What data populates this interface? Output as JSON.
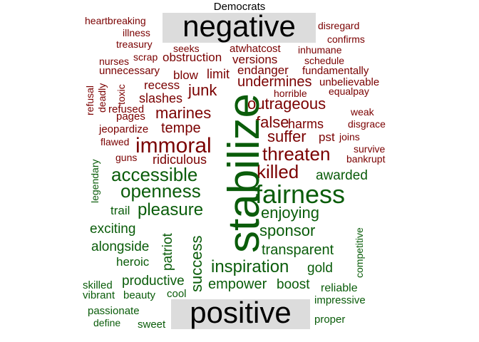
{
  "chart_data": {
    "type": "wordcloud",
    "title": "Democrats",
    "groups": [
      {
        "name": "negative",
        "color": "#7a0000"
      },
      {
        "name": "positive",
        "color": "#0a5c0a"
      }
    ],
    "words": [
      {
        "text": "heartbreaking",
        "group": "negative",
        "size": 2
      },
      {
        "text": "illness",
        "group": "negative",
        "size": 2
      },
      {
        "text": "treasury",
        "group": "negative",
        "size": 2
      },
      {
        "text": "disregard",
        "group": "negative",
        "size": 2
      },
      {
        "text": "confirms",
        "group": "negative",
        "size": 2
      },
      {
        "text": "seeks",
        "group": "negative",
        "size": 2
      },
      {
        "text": "atwhatcost",
        "group": "negative",
        "size": 2
      },
      {
        "text": "inhumane",
        "group": "negative",
        "size": 2
      },
      {
        "text": "nurses",
        "group": "negative",
        "size": 2
      },
      {
        "text": "scrap",
        "group": "negative",
        "size": 2
      },
      {
        "text": "obstruction",
        "group": "negative",
        "size": 3
      },
      {
        "text": "versions",
        "group": "negative",
        "size": 3
      },
      {
        "text": "schedule",
        "group": "negative",
        "size": 2
      },
      {
        "text": "unnecessary",
        "group": "negative",
        "size": 2
      },
      {
        "text": "blow",
        "group": "negative",
        "size": 3
      },
      {
        "text": "limit",
        "group": "negative",
        "size": 3
      },
      {
        "text": "endanger",
        "group": "negative",
        "size": 3
      },
      {
        "text": "fundamentally",
        "group": "negative",
        "size": 2
      },
      {
        "text": "recess",
        "group": "negative",
        "size": 3
      },
      {
        "text": "undermines",
        "group": "negative",
        "size": 4
      },
      {
        "text": "unbelievable",
        "group": "negative",
        "size": 2
      },
      {
        "text": "junk",
        "group": "negative",
        "size": 4
      },
      {
        "text": "horrible",
        "group": "negative",
        "size": 2
      },
      {
        "text": "equalpay",
        "group": "negative",
        "size": 2
      },
      {
        "text": "refusal",
        "group": "negative",
        "size": 2
      },
      {
        "text": "deadly",
        "group": "negative",
        "size": 2
      },
      {
        "text": "toxic",
        "group": "negative",
        "size": 2
      },
      {
        "text": "slashes",
        "group": "negative",
        "size": 3
      },
      {
        "text": "outrageous",
        "group": "negative",
        "size": 4
      },
      {
        "text": "refused",
        "group": "negative",
        "size": 2
      },
      {
        "text": "pages",
        "group": "negative",
        "size": 2
      },
      {
        "text": "marines",
        "group": "negative",
        "size": 4
      },
      {
        "text": "weak",
        "group": "negative",
        "size": 2
      },
      {
        "text": "false",
        "group": "negative",
        "size": 4
      },
      {
        "text": "harms",
        "group": "negative",
        "size": 3
      },
      {
        "text": "disgrace",
        "group": "negative",
        "size": 2
      },
      {
        "text": "jeopardize",
        "group": "negative",
        "size": 2
      },
      {
        "text": "tempe",
        "group": "negative",
        "size": 3
      },
      {
        "text": "suffer",
        "group": "negative",
        "size": 4
      },
      {
        "text": "pst",
        "group": "negative",
        "size": 3
      },
      {
        "text": "joins",
        "group": "negative",
        "size": 2
      },
      {
        "text": "flawed",
        "group": "negative",
        "size": 2
      },
      {
        "text": "immoral",
        "group": "negative",
        "size": 5
      },
      {
        "text": "survive",
        "group": "negative",
        "size": 2
      },
      {
        "text": "threaten",
        "group": "negative",
        "size": 5
      },
      {
        "text": "bankrupt",
        "group": "negative",
        "size": 2
      },
      {
        "text": "guns",
        "group": "negative",
        "size": 2
      },
      {
        "text": "ridiculous",
        "group": "negative",
        "size": 3
      },
      {
        "text": "killed",
        "group": "negative",
        "size": 5
      },
      {
        "text": "stabilize",
        "group": "positive",
        "size": 8
      },
      {
        "text": "legendary",
        "group": "positive",
        "size": 2
      },
      {
        "text": "accessible",
        "group": "positive",
        "size": 5
      },
      {
        "text": "awarded",
        "group": "positive",
        "size": 3
      },
      {
        "text": "openness",
        "group": "positive",
        "size": 4
      },
      {
        "text": "fairness",
        "group": "positive",
        "size": 6
      },
      {
        "text": "trail",
        "group": "positive",
        "size": 2
      },
      {
        "text": "pleasure",
        "group": "positive",
        "size": 4
      },
      {
        "text": "enjoying",
        "group": "positive",
        "size": 4
      },
      {
        "text": "competitive",
        "group": "positive",
        "size": 2
      },
      {
        "text": "exciting",
        "group": "positive",
        "size": 3
      },
      {
        "text": "patriot",
        "group": "positive",
        "size": 3
      },
      {
        "text": "success",
        "group": "positive",
        "size": 4
      },
      {
        "text": "sponsor",
        "group": "positive",
        "size": 4
      },
      {
        "text": "alongside",
        "group": "positive",
        "size": 3
      },
      {
        "text": "transparent",
        "group": "positive",
        "size": 3
      },
      {
        "text": "heroic",
        "group": "positive",
        "size": 2
      },
      {
        "text": "inspiration",
        "group": "positive",
        "size": 4
      },
      {
        "text": "gold",
        "group": "positive",
        "size": 3
      },
      {
        "text": "productive",
        "group": "positive",
        "size": 3
      },
      {
        "text": "empower",
        "group": "positive",
        "size": 3
      },
      {
        "text": "boost",
        "group": "positive",
        "size": 3
      },
      {
        "text": "skilled",
        "group": "positive",
        "size": 2
      },
      {
        "text": "reliable",
        "group": "positive",
        "size": 2
      },
      {
        "text": "vibrant",
        "group": "positive",
        "size": 2
      },
      {
        "text": "beauty",
        "group": "positive",
        "size": 2
      },
      {
        "text": "cool",
        "group": "positive",
        "size": 2
      },
      {
        "text": "impressive",
        "group": "positive",
        "size": 2
      },
      {
        "text": "passionate",
        "group": "positive",
        "size": 2
      },
      {
        "text": "define",
        "group": "positive",
        "size": 2
      },
      {
        "text": "sweet",
        "group": "positive",
        "size": 2
      },
      {
        "text": "proper",
        "group": "positive",
        "size": 2
      }
    ]
  }
}
